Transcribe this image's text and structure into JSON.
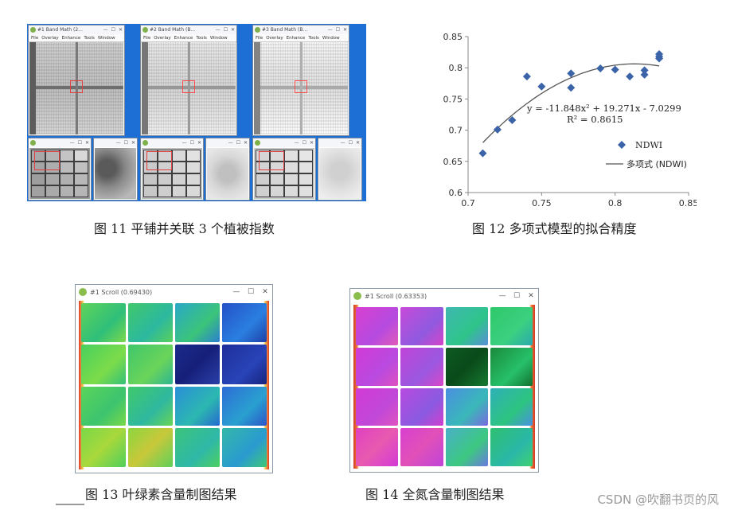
{
  "fig11": {
    "windows": [
      {
        "title": "#1 Band Math (2...",
        "menu": [
          "File",
          "Overlay",
          "Enhance",
          "Tools",
          "Window"
        ]
      },
      {
        "title": "#2 Band Math (B...",
        "menu": [
          "File",
          "Overlay",
          "Enhance",
          "Tools",
          "Window"
        ]
      },
      {
        "title": "#3 Band Math (B...",
        "menu": [
          "File",
          "Overlay",
          "Enhance",
          "Tools",
          "Window"
        ]
      }
    ],
    "caption": "图 11  平铺并关联 3 个植被指数"
  },
  "fig12": {
    "caption": "图 12  多项式模型的拟合精度",
    "chart_data": {
      "type": "scatter",
      "title": "",
      "xlabel": "",
      "ylabel": "",
      "xlim": [
        0.7,
        0.85
      ],
      "ylim": [
        0.6,
        0.85
      ],
      "x_ticks": [
        "0.7",
        "0.75",
        "0.8",
        "0.85"
      ],
      "y_ticks": [
        "0.6",
        "0.65",
        "0.7",
        "0.75",
        "0.8",
        "0.85"
      ],
      "series": [
        {
          "name": "NDWI",
          "color": "#3a63a8",
          "x": [
            0.71,
            0.72,
            0.73,
            0.74,
            0.75,
            0.77,
            0.77,
            0.79,
            0.8,
            0.81,
            0.82,
            0.82,
            0.83,
            0.83,
            0.83
          ],
          "y": [
            0.663,
            0.701,
            0.716,
            0.786,
            0.77,
            0.791,
            0.768,
            0.799,
            0.797,
            0.786,
            0.789,
            0.796,
            0.815,
            0.818,
            0.822
          ]
        },
        {
          "name": "多项式 (NDWI)",
          "type": "line",
          "color": "#555555",
          "coefficients": [
            -11.848,
            19.271,
            -7.0299
          ],
          "x_range": [
            0.71,
            0.83
          ]
        }
      ],
      "annotations": [
        "y = -11.848x² + 19.271x - 7.0299",
        "R² = 0.8615"
      ],
      "legend": "right-middle",
      "grid": false
    }
  },
  "fig13": {
    "window_title": "#1 Scroll (0.69430)",
    "caption": "图 13  叶绿素含量制图结果"
  },
  "fig14": {
    "window_title": "#1 Scroll (0.63353)",
    "caption": "图 14  全氮含量制图结果"
  },
  "window_controls": {
    "minimize": "—",
    "maximize": "☐",
    "close": "✕"
  },
  "watermark": "CSDN @吹翻书页的风",
  "colors": {
    "chl_green": "#3bd06a",
    "chl_blue": "#2b55c8",
    "chl_navy": "#1b2a8a",
    "n_magenta": "#d43ad6",
    "n_green": "#27c06a",
    "n_dark": "#0e5a22"
  }
}
